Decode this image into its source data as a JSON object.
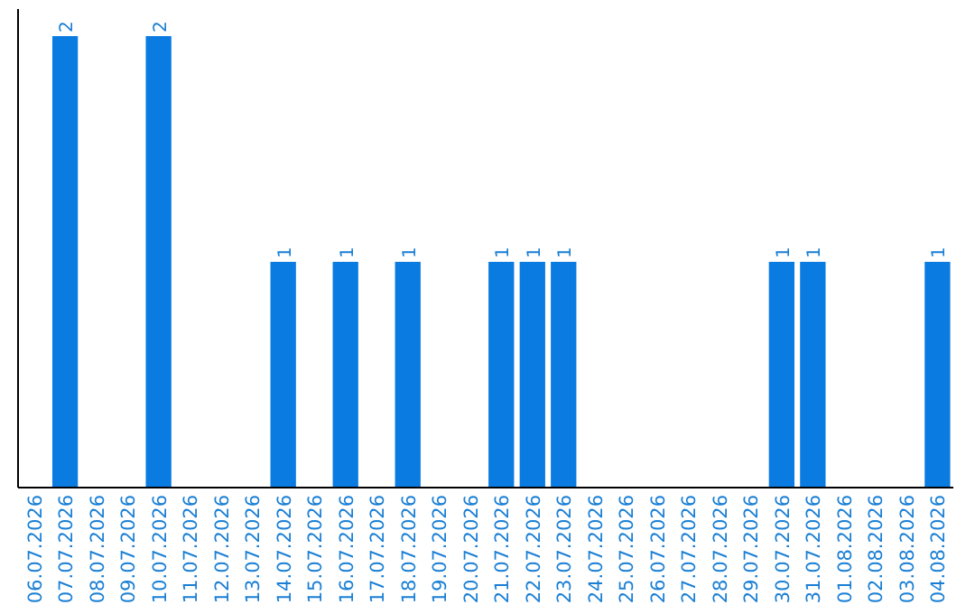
{
  "chart_data": {
    "type": "bar",
    "categories": [
      "06.07.2026",
      "07.07.2026",
      "08.07.2026",
      "09.07.2026",
      "10.07.2026",
      "11.07.2026",
      "12.07.2026",
      "13.07.2026",
      "14.07.2026",
      "15.07.2026",
      "16.07.2026",
      "17.07.2026",
      "18.07.2026",
      "19.07.2026",
      "20.07.2026",
      "21.07.2026",
      "22.07.2026",
      "23.07.2026",
      "24.07.2026",
      "25.07.2026",
      "26.07.2026",
      "27.07.2026",
      "28.07.2026",
      "29.07.2026",
      "30.07.2026",
      "31.07.2026",
      "01.08.2026",
      "02.08.2026",
      "03.08.2026",
      "04.08.2026"
    ],
    "values": [
      0,
      2,
      0,
      0,
      2,
      0,
      0,
      0,
      1,
      0,
      1,
      0,
      1,
      0,
      0,
      1,
      1,
      1,
      0,
      0,
      0,
      0,
      0,
      0,
      1,
      1,
      0,
      0,
      0,
      1
    ],
    "value_labels": [
      null,
      "2",
      null,
      null,
      "2",
      null,
      null,
      null,
      "1",
      null,
      "1",
      null,
      "1",
      null,
      null,
      "1",
      "1",
      "1",
      null,
      null,
      null,
      null,
      null,
      null,
      "1",
      "1",
      null,
      null,
      null,
      "1"
    ],
    "color": "#0a7be0",
    "tick_labels": "x"
  }
}
